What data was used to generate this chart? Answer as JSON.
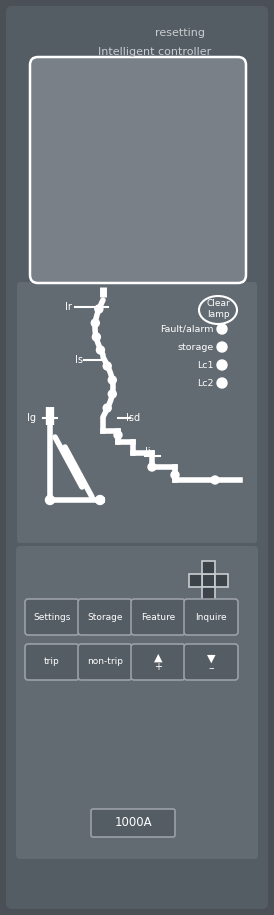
{
  "bg_color": "#4a5055",
  "panel_bg": "#555d64",
  "panel_inner_bg": "#636b72",
  "screen_bg": "#7a8088",
  "white": "#ffffff",
  "light_gray": "#c8cdd0",
  "title_resetting": "resetting",
  "title_controller": "Intelligent controller",
  "label_clear_lamp": "Clear\nlamp",
  "labels_indicators": [
    "Fault/alarm",
    "storage",
    "Lc1",
    "Lc2"
  ],
  "btn_row1": [
    "Settings",
    "Storage",
    "Feature",
    "Inquire"
  ],
  "btn_row2": [
    "trip",
    "non-trip"
  ],
  "label_1000A": "1000A",
  "button_bg": "#555d64",
  "button_border": "#9aa0a6",
  "cross_color": "#3d4449"
}
